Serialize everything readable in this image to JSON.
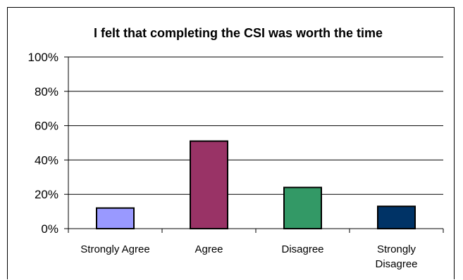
{
  "chart_data": {
    "type": "bar",
    "title": "I felt that completing the CSI was worth the time",
    "categories": [
      "Strongly Agree",
      "Agree",
      "Disagree",
      "Strongly Disagree"
    ],
    "category_lines": [
      [
        "Strongly Agree"
      ],
      [
        "Agree"
      ],
      [
        "Disagree"
      ],
      [
        "Strongly",
        "Disagree"
      ]
    ],
    "values": [
      12,
      51,
      24,
      13
    ],
    "bar_colors": [
      "#9999ff",
      "#993366",
      "#339966",
      "#003366"
    ],
    "yticks": [
      "0%",
      "20%",
      "40%",
      "60%",
      "80%",
      "100%"
    ],
    "ytick_values": [
      0,
      20,
      40,
      60,
      80,
      100
    ],
    "ylim": [
      0,
      100
    ],
    "xlabel": "",
    "ylabel": "",
    "grid": true,
    "legend": "none"
  }
}
